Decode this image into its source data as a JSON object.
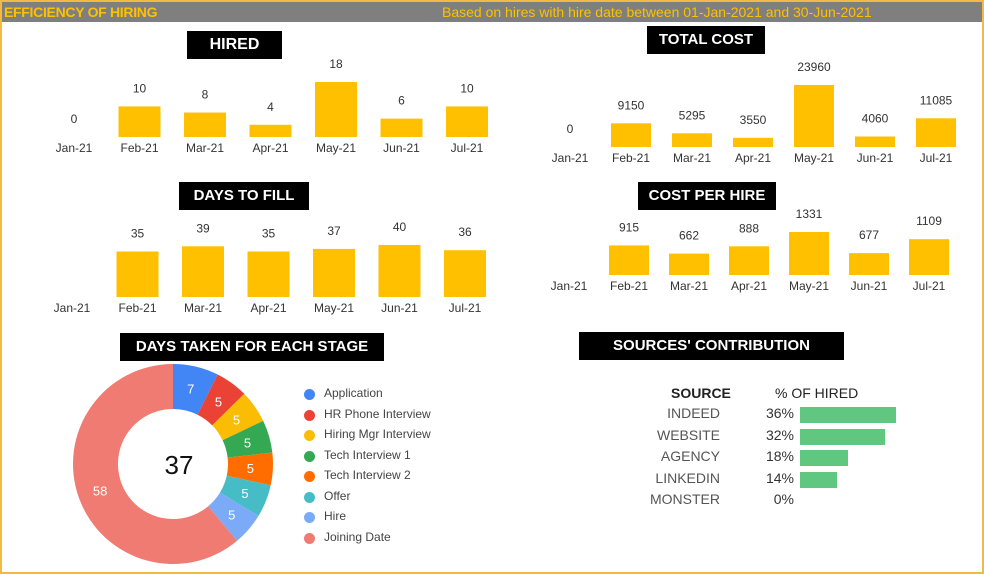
{
  "header": {
    "title": "EFFICIENCY OF HIRING",
    "subtitle": "Based on hires with hire date between 01-Jan-2021 and 30-Jun-2021"
  },
  "colors": {
    "bar": "#ffc000",
    "source_bar": "#5fc77f",
    "header_bar": "#7f7f7f",
    "accent": "#ffc000"
  },
  "chart_data": [
    {
      "id": "hired",
      "type": "bar",
      "title": "HIRED",
      "categories": [
        "Jan-21",
        "Feb-21",
        "Mar-21",
        "Apr-21",
        "May-21",
        "Jun-21",
        "Jul-21"
      ],
      "values": [
        0,
        10,
        8,
        4,
        18,
        6,
        10
      ]
    },
    {
      "id": "total_cost",
      "type": "bar",
      "title": "TOTAL COST",
      "categories": [
        "Jan-21",
        "Feb-21",
        "Mar-21",
        "Apr-21",
        "May-21",
        "Jun-21",
        "Jul-21"
      ],
      "values": [
        0,
        9150,
        5295,
        3550,
        23960,
        4060,
        11085
      ]
    },
    {
      "id": "days_to_fill",
      "type": "bar",
      "title": "DAYS TO FILL",
      "categories": [
        "Jan-21",
        "Feb-21",
        "Mar-21",
        "Apr-21",
        "May-21",
        "Jun-21",
        "Jul-21"
      ],
      "values": [
        null,
        35,
        39,
        35,
        37,
        40,
        36
      ]
    },
    {
      "id": "cost_per_hire",
      "type": "bar",
      "title": "COST PER HIRE",
      "categories": [
        "Jan-21",
        "Feb-21",
        "Mar-21",
        "Apr-21",
        "May-21",
        "Jun-21",
        "Jul-21"
      ],
      "values": [
        null,
        915,
        662,
        888,
        1331,
        677,
        1109
      ]
    },
    {
      "id": "stages",
      "type": "pie",
      "title": "DAYS TAKEN FOR EACH STAGE",
      "center_label": "37",
      "slices": [
        {
          "name": "Application",
          "value": 7,
          "color": "#4285f4"
        },
        {
          "name": "HR Phone Interview",
          "value": 5,
          "color": "#ea4335"
        },
        {
          "name": "Hiring Mgr Interview",
          "value": 5,
          "color": "#fbbc04"
        },
        {
          "name": "Tech Interview 1",
          "value": 5,
          "color": "#34a853"
        },
        {
          "name": "Tech Interview 2",
          "value": 5,
          "color": "#ff6d01"
        },
        {
          "name": "Offer",
          "value": 5,
          "color": "#46bdc6"
        },
        {
          "name": "Hire",
          "value": 5,
          "color": "#7baaf7"
        },
        {
          "name": "Joining Date",
          "value": 58,
          "color": "#f07b72"
        }
      ]
    },
    {
      "id": "sources",
      "type": "bar",
      "title": "SOURCES' CONTRIBUTION",
      "column_headers": [
        "SOURCE",
        "% OF HIRED"
      ],
      "rows": [
        {
          "source": "INDEED",
          "pct": "36%",
          "value": 36
        },
        {
          "source": "WEBSITE",
          "pct": "32%",
          "value": 32
        },
        {
          "source": "AGENCY",
          "pct": "18%",
          "value": 18
        },
        {
          "source": "LINKEDIN",
          "pct": "14%",
          "value": 14
        },
        {
          "source": "MONSTER",
          "pct": "0%",
          "value": 0
        }
      ]
    }
  ]
}
